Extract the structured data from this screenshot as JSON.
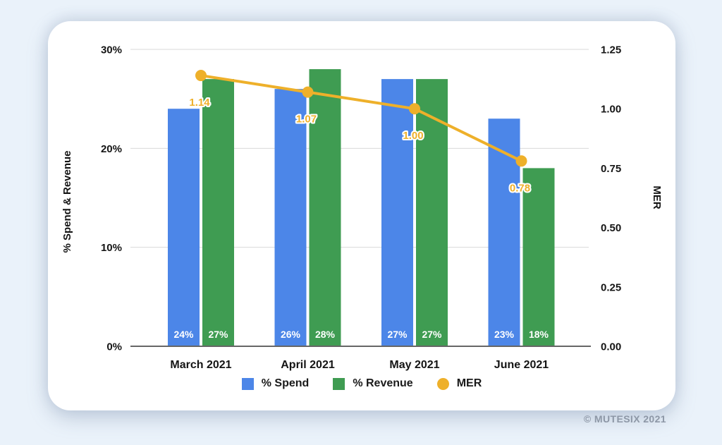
{
  "footer": {
    "copyright": "© MUTESIX 2021"
  },
  "colors": {
    "background": "#eaf2fa",
    "card": "#ffffff",
    "spend_blue": "#4c86e8",
    "revenue_green": "#3f9c52",
    "mer_yellow": "#eeb02a",
    "gridline": "#d9d9d9",
    "axis_line": "#666666",
    "text": "#141414"
  },
  "chart_data": {
    "type": "combo_bar_line",
    "categories": [
      "March 2021",
      "April 2021",
      "May 2021",
      "June 2021"
    ],
    "series": [
      {
        "name": "% Spend",
        "type": "bar",
        "color": "#4c86e8",
        "values": [
          24,
          26,
          27,
          23
        ],
        "labels": [
          "24%",
          "26%",
          "27%",
          "23%"
        ]
      },
      {
        "name": "% Revenue",
        "type": "bar",
        "color": "#3f9c52",
        "values": [
          27,
          28,
          27,
          18
        ],
        "labels": [
          "27%",
          "28%",
          "27%",
          "18%"
        ]
      },
      {
        "name": "MER",
        "type": "line",
        "color": "#eeb02a",
        "values": [
          1.14,
          1.07,
          1.0,
          0.78
        ],
        "labels": [
          "1.14",
          "1.07",
          "1.00",
          "0.78"
        ]
      }
    ],
    "y_left": {
      "label": "% Spend & Revenue",
      "max": 30,
      "tick_values": [
        30,
        20,
        10,
        0
      ],
      "tick_labels": [
        "30%",
        "20%",
        "10%",
        "0%"
      ]
    },
    "y_right": {
      "label": "MER",
      "max": 1.25,
      "tick_values": [
        1.25,
        1.0,
        0.75,
        0.5,
        0.25,
        0.0
      ],
      "tick_labels": [
        "1.25",
        "1.00",
        "0.75",
        "0.50",
        "0.25",
        "0.00"
      ]
    },
    "legend_position": "bottom",
    "grid": "horizontal-left-ticks-only"
  }
}
